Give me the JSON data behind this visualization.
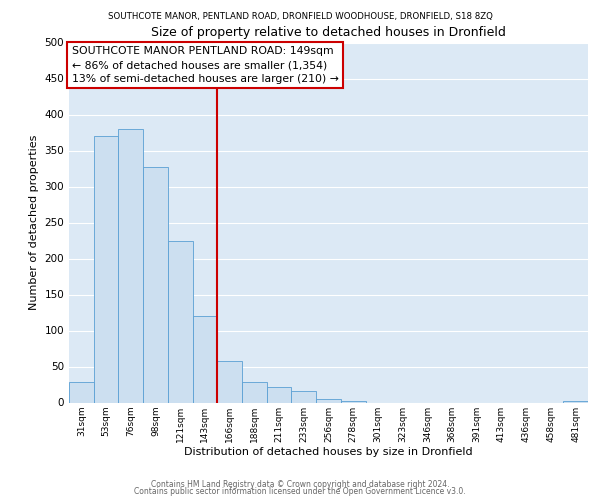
{
  "title_top": "SOUTHCOTE MANOR, PENTLAND ROAD, DRONFIELD WOODHOUSE, DRONFIELD, S18 8ZQ",
  "title_main": "Size of property relative to detached houses in Dronfield",
  "xlabel": "Distribution of detached houses by size in Dronfield",
  "ylabel": "Number of detached properties",
  "bar_labels": [
    "31sqm",
    "53sqm",
    "76sqm",
    "98sqm",
    "121sqm",
    "143sqm",
    "166sqm",
    "188sqm",
    "211sqm",
    "233sqm",
    "256sqm",
    "278sqm",
    "301sqm",
    "323sqm",
    "346sqm",
    "368sqm",
    "391sqm",
    "413sqm",
    "436sqm",
    "458sqm",
    "481sqm"
  ],
  "bar_values": [
    28,
    370,
    380,
    327,
    225,
    120,
    58,
    28,
    22,
    16,
    5,
    2,
    0,
    0,
    0,
    0,
    0,
    0,
    0,
    0,
    2
  ],
  "bar_color": "#ccdff0",
  "bar_edge_color": "#5a9fd4",
  "vline_x": 5.5,
  "vline_color": "#cc0000",
  "annotation_text": "SOUTHCOTE MANOR PENTLAND ROAD: 149sqm\n← 86% of detached houses are smaller (1,354)\n13% of semi-detached houses are larger (210) →",
  "annotation_box_color": "#ffffff",
  "annotation_border_color": "#cc0000",
  "ylim": [
    0,
    500
  ],
  "yticks": [
    0,
    50,
    100,
    150,
    200,
    250,
    300,
    350,
    400,
    450,
    500
  ],
  "bg_color": "#dce9f5",
  "footer_line1": "Contains HM Land Registry data © Crown copyright and database right 2024.",
  "footer_line2": "Contains public sector information licensed under the Open Government Licence v3.0.",
  "grid_color": "#ffffff"
}
